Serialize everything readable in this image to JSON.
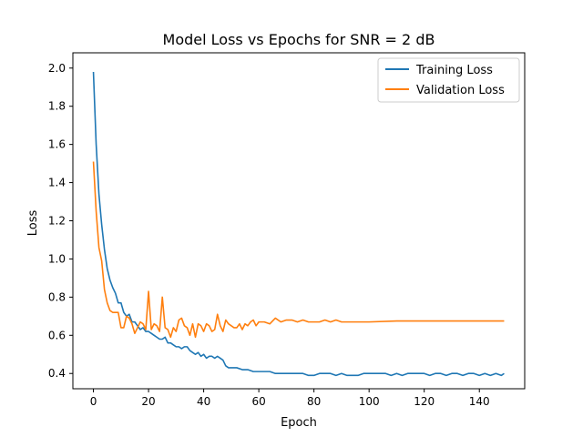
{
  "chart_data": {
    "type": "line",
    "title": "Model Loss vs Epochs for SNR = 2 dB",
    "xlabel": "Epoch",
    "ylabel": "Loss",
    "xlim": [
      -7.45,
      156.45
    ],
    "ylim": [
      0.32,
      2.08
    ],
    "xticks": [
      0,
      20,
      40,
      60,
      80,
      100,
      120,
      140
    ],
    "yticks": [
      0.4,
      0.6,
      0.8,
      1.0,
      1.2,
      1.4,
      1.6,
      1.8,
      2.0
    ],
    "xtick_labels": [
      "0",
      "20",
      "40",
      "60",
      "80",
      "100",
      "120",
      "140"
    ],
    "ytick_labels": [
      "0.4",
      "0.6",
      "0.8",
      "1.0",
      "1.2",
      "1.4",
      "1.6",
      "1.8",
      "2.0"
    ],
    "grid": false,
    "legend": "top-right",
    "series": [
      {
        "name": "Training Loss",
        "color": "#1f77b4",
        "x": [
          0,
          1,
          2,
          3,
          4,
          5,
          6,
          7,
          8,
          9,
          10,
          11,
          12,
          13,
          14,
          15,
          16,
          17,
          18,
          19,
          20,
          21,
          22,
          23,
          24,
          25,
          26,
          27,
          28,
          29,
          30,
          31,
          32,
          33,
          34,
          35,
          36,
          37,
          38,
          39,
          40,
          41,
          42,
          43,
          44,
          45,
          46,
          47,
          48,
          49,
          50,
          52,
          54,
          56,
          58,
          60,
          62,
          64,
          66,
          68,
          70,
          72,
          74,
          76,
          78,
          80,
          82,
          84,
          86,
          88,
          90,
          92,
          94,
          96,
          98,
          100,
          102,
          104,
          106,
          108,
          110,
          112,
          114,
          116,
          118,
          120,
          122,
          124,
          126,
          128,
          130,
          132,
          134,
          136,
          138,
          140,
          142,
          144,
          146,
          148,
          149
        ],
        "values": [
          1.98,
          1.6,
          1.34,
          1.18,
          1.05,
          0.95,
          0.89,
          0.85,
          0.82,
          0.77,
          0.77,
          0.72,
          0.7,
          0.71,
          0.67,
          0.67,
          0.65,
          0.63,
          0.64,
          0.62,
          0.62,
          0.61,
          0.6,
          0.59,
          0.58,
          0.58,
          0.59,
          0.56,
          0.56,
          0.55,
          0.54,
          0.54,
          0.53,
          0.54,
          0.54,
          0.52,
          0.51,
          0.5,
          0.51,
          0.49,
          0.5,
          0.48,
          0.49,
          0.49,
          0.48,
          0.49,
          0.48,
          0.47,
          0.44,
          0.43,
          0.43,
          0.43,
          0.42,
          0.42,
          0.41,
          0.41,
          0.41,
          0.41,
          0.4,
          0.4,
          0.4,
          0.4,
          0.4,
          0.4,
          0.39,
          0.39,
          0.4,
          0.4,
          0.4,
          0.39,
          0.4,
          0.39,
          0.39,
          0.39,
          0.4,
          0.4,
          0.4,
          0.4,
          0.4,
          0.39,
          0.4,
          0.39,
          0.4,
          0.4,
          0.4,
          0.4,
          0.39,
          0.4,
          0.4,
          0.39,
          0.4,
          0.4,
          0.39,
          0.4,
          0.4,
          0.39,
          0.4,
          0.39,
          0.4,
          0.39,
          0.4
        ]
      },
      {
        "name": "Validation Loss",
        "color": "#ff7f0e",
        "x": [
          0,
          1,
          2,
          3,
          4,
          5,
          6,
          7,
          8,
          9,
          10,
          11,
          12,
          13,
          14,
          15,
          16,
          17,
          18,
          19,
          20,
          21,
          22,
          23,
          24,
          25,
          26,
          27,
          28,
          29,
          30,
          31,
          32,
          33,
          34,
          35,
          36,
          37,
          38,
          39,
          40,
          41,
          42,
          43,
          44,
          45,
          46,
          47,
          48,
          49,
          50,
          51,
          52,
          53,
          54,
          55,
          56,
          57,
          58,
          59,
          60,
          62,
          64,
          66,
          68,
          70,
          72,
          74,
          76,
          78,
          80,
          82,
          84,
          86,
          88,
          90,
          92,
          94,
          96,
          98,
          100,
          110,
          120,
          130,
          140,
          149
        ],
        "values": [
          1.51,
          1.25,
          1.06,
          0.99,
          0.84,
          0.77,
          0.73,
          0.72,
          0.72,
          0.72,
          0.64,
          0.64,
          0.7,
          0.69,
          0.66,
          0.61,
          0.64,
          0.67,
          0.66,
          0.63,
          0.83,
          0.63,
          0.66,
          0.65,
          0.62,
          0.8,
          0.64,
          0.63,
          0.59,
          0.64,
          0.62,
          0.68,
          0.69,
          0.65,
          0.64,
          0.6,
          0.66,
          0.59,
          0.66,
          0.65,
          0.62,
          0.66,
          0.65,
          0.62,
          0.63,
          0.71,
          0.65,
          0.62,
          0.68,
          0.66,
          0.65,
          0.64,
          0.64,
          0.66,
          0.63,
          0.66,
          0.65,
          0.67,
          0.68,
          0.65,
          0.67,
          0.67,
          0.66,
          0.69,
          0.67,
          0.68,
          0.68,
          0.67,
          0.68,
          0.67,
          0.67,
          0.67,
          0.68,
          0.67,
          0.68,
          0.67,
          0.67,
          0.67,
          0.67,
          0.67,
          0.67,
          0.675,
          0.675,
          0.675,
          0.675,
          0.675
        ]
      }
    ]
  }
}
